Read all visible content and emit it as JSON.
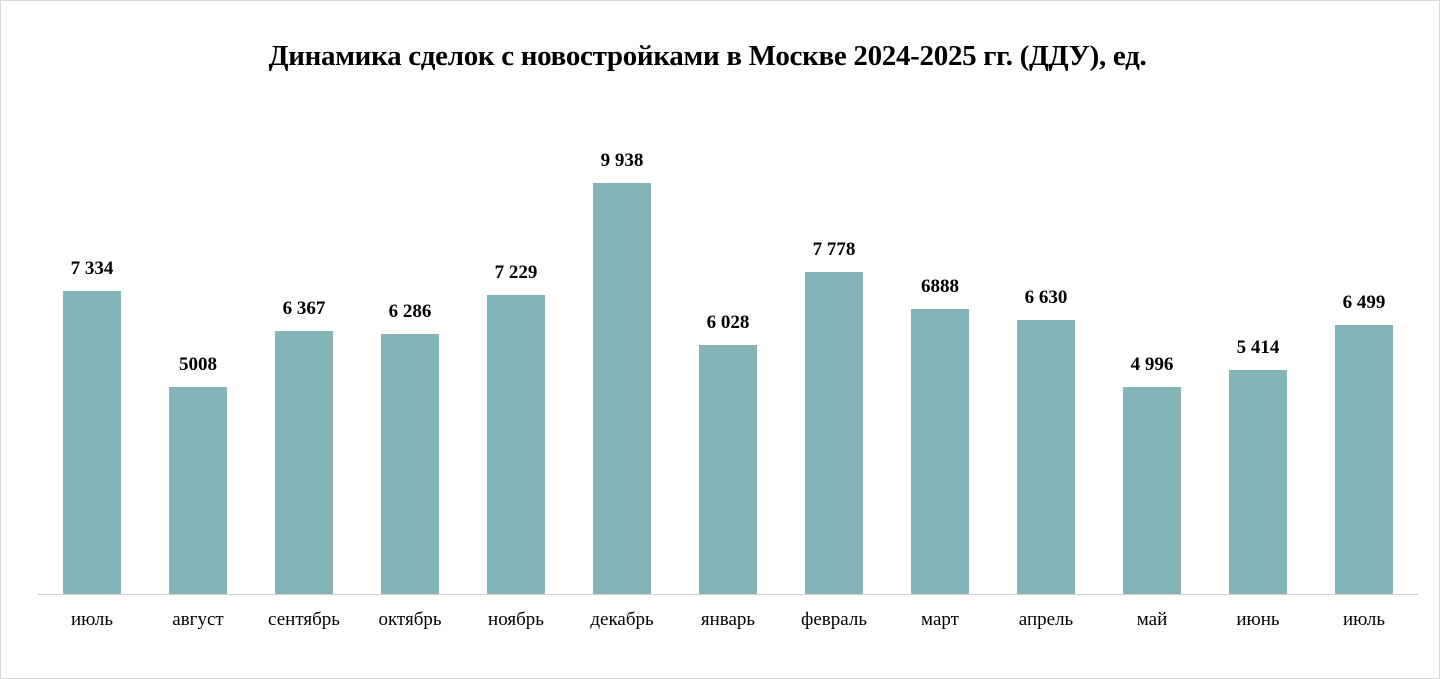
{
  "chart_data": {
    "type": "bar",
    "title": "Динамика сделок с новостройками в Москве 2024-2025 гг. (ДДУ), ед.",
    "xlabel": "",
    "ylabel": "",
    "categories": [
      "июль",
      "август",
      "сентябрь",
      "октябрь",
      "ноябрь",
      "декабрь",
      "январь",
      "февраль",
      "март",
      "апрель",
      "май",
      "июнь",
      "июль"
    ],
    "values": [
      7334,
      5008,
      6367,
      6286,
      7229,
      9938,
      6028,
      7778,
      6888,
      6630,
      4996,
      5414,
      6499
    ],
    "data_labels": [
      "7 334",
      "5008",
      "6 367",
      "6 286",
      "7 229",
      "9 938",
      "6 028",
      "7 778",
      "6888",
      "6 630",
      "4 996",
      "5 414",
      "6 499"
    ],
    "ylim": [
      0,
      10000
    ],
    "grid": false,
    "legend": "none",
    "bar_color": "#84B4B8"
  }
}
